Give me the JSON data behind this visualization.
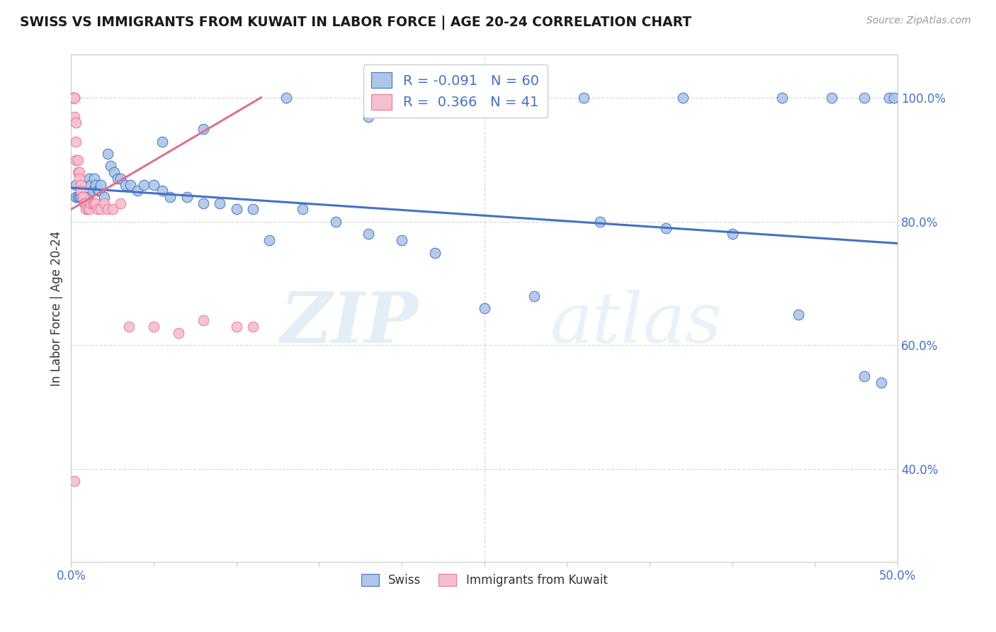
{
  "title": "SWISS VS IMMIGRANTS FROM KUWAIT IN LABOR FORCE | AGE 20-24 CORRELATION CHART",
  "source": "Source: ZipAtlas.com",
  "ylabel": "In Labor Force | Age 20-24",
  "xlim": [
    0.0,
    0.5
  ],
  "ylim": [
    0.25,
    1.07
  ],
  "x_tick_positions": [
    0.0,
    0.05,
    0.1,
    0.15,
    0.2,
    0.25,
    0.3,
    0.35,
    0.4,
    0.45,
    0.5
  ],
  "x_tick_labels": [
    "0.0%",
    "",
    "",
    "",
    "",
    "",
    "",
    "",
    "",
    "",
    "50.0%"
  ],
  "y_ticks_right": [
    0.4,
    0.6,
    0.8,
    1.0
  ],
  "y_tick_labels_right": [
    "40.0%",
    "60.0%",
    "80.0%",
    "100.0%"
  ],
  "legend_r_swiss": "-0.091",
  "legend_n_swiss": "60",
  "legend_r_kuwait": "0.366",
  "legend_n_kuwait": "41",
  "swiss_color": "#aec6e8",
  "kuwait_color": "#f5bfce",
  "swiss_edge_color": "#4472c4",
  "kuwait_edge_color": "#e8799a",
  "swiss_line_color": "#4472c4",
  "kuwait_line_color": "#e07090",
  "swiss_points_x": [
    0.003,
    0.003,
    0.004,
    0.005,
    0.006,
    0.007,
    0.008,
    0.01,
    0.011,
    0.012,
    0.013,
    0.014,
    0.015,
    0.016,
    0.017,
    0.018,
    0.02,
    0.022,
    0.024,
    0.026,
    0.028,
    0.03,
    0.033,
    0.036,
    0.04,
    0.044,
    0.05,
    0.055,
    0.06,
    0.07,
    0.08,
    0.09,
    0.1,
    0.11,
    0.12,
    0.14,
    0.16,
    0.18,
    0.2,
    0.22,
    0.25,
    0.28,
    0.32,
    0.36,
    0.4,
    0.44,
    0.48,
    0.49,
    0.055,
    0.08,
    0.13,
    0.18,
    0.26,
    0.31,
    0.37,
    0.43,
    0.46,
    0.48,
    0.495,
    0.498
  ],
  "swiss_points_y": [
    0.84,
    0.86,
    0.84,
    0.84,
    0.84,
    0.84,
    0.84,
    0.84,
    0.87,
    0.86,
    0.85,
    0.87,
    0.86,
    0.85,
    0.85,
    0.86,
    0.84,
    0.91,
    0.89,
    0.88,
    0.87,
    0.87,
    0.86,
    0.86,
    0.85,
    0.86,
    0.86,
    0.85,
    0.84,
    0.84,
    0.83,
    0.83,
    0.82,
    0.82,
    0.77,
    0.82,
    0.8,
    0.78,
    0.77,
    0.75,
    0.66,
    0.68,
    0.8,
    0.79,
    0.78,
    0.65,
    0.55,
    0.54,
    0.93,
    0.95,
    1.0,
    0.97,
    1.0,
    1.0,
    1.0,
    1.0,
    1.0,
    1.0,
    1.0,
    1.0
  ],
  "kuwait_points_x": [
    0.001,
    0.001,
    0.001,
    0.002,
    0.002,
    0.002,
    0.002,
    0.003,
    0.003,
    0.003,
    0.004,
    0.004,
    0.005,
    0.005,
    0.006,
    0.006,
    0.007,
    0.007,
    0.008,
    0.008,
    0.009,
    0.009,
    0.01,
    0.011,
    0.012,
    0.013,
    0.014,
    0.015,
    0.016,
    0.018,
    0.02,
    0.022,
    0.025,
    0.03,
    0.035,
    0.05,
    0.065,
    0.08,
    0.1,
    0.11,
    0.002
  ],
  "kuwait_points_y": [
    1.0,
    1.0,
    1.0,
    1.0,
    1.0,
    1.0,
    0.97,
    0.96,
    0.93,
    0.9,
    0.9,
    0.88,
    0.88,
    0.87,
    0.86,
    0.85,
    0.84,
    0.84,
    0.83,
    0.83,
    0.83,
    0.82,
    0.82,
    0.82,
    0.83,
    0.83,
    0.83,
    0.83,
    0.82,
    0.82,
    0.83,
    0.82,
    0.82,
    0.83,
    0.63,
    0.63,
    0.62,
    0.64,
    0.63,
    0.63,
    0.38
  ],
  "swiss_line_x": [
    0.0,
    0.5
  ],
  "swiss_line_y": [
    0.855,
    0.765
  ],
  "kuwait_line_x": [
    0.0,
    0.115
  ],
  "kuwait_line_y": [
    0.82,
    1.001
  ],
  "watermark_zip": "ZIP",
  "watermark_atlas": "atlas",
  "background_color": "#ffffff",
  "grid_color": "#d8d8d8"
}
